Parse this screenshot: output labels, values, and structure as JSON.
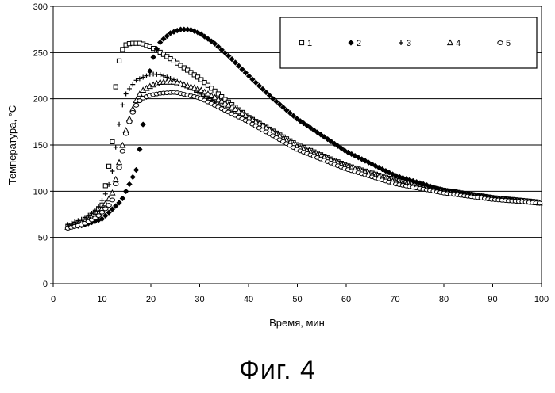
{
  "caption": "Фиг. 4",
  "chart_data": {
    "type": "scatter",
    "xlabel": "Время, мин",
    "ylabel": "Температура, °С",
    "xlim": [
      0,
      100
    ],
    "ylim": [
      0,
      300
    ],
    "x_ticks": [
      0,
      10,
      20,
      30,
      40,
      50,
      60,
      70,
      80,
      90,
      100
    ],
    "y_ticks": [
      0,
      50,
      100,
      150,
      200,
      250,
      300
    ],
    "grid": "horizontal",
    "legend_position": "top-right",
    "series": [
      {
        "name": "1",
        "marker": "square",
        "x": [
          3,
          6,
          8,
          10,
          12,
          13,
          14,
          15,
          16,
          18,
          20,
          22,
          25,
          30,
          35,
          40,
          50,
          60,
          70,
          80,
          90,
          100
        ],
        "y": [
          62,
          66,
          74,
          85,
          145,
          230,
          252,
          259,
          260,
          260,
          256,
          250,
          240,
          222,
          200,
          180,
          150,
          128,
          112,
          101,
          93,
          88
        ]
      },
      {
        "name": "2",
        "marker": "diamond",
        "x": [
          3,
          6,
          10,
          14,
          17,
          18,
          19,
          20,
          21,
          22,
          24,
          26,
          28,
          30,
          33,
          36,
          40,
          45,
          50,
          60,
          70,
          80,
          90,
          100
        ],
        "y": [
          61,
          63,
          70,
          90,
          123,
          155,
          198,
          238,
          252,
          262,
          271,
          275,
          275,
          271,
          260,
          246,
          225,
          200,
          178,
          143,
          117,
          101,
          93,
          87
        ]
      },
      {
        "name": "3",
        "marker": "plus",
        "x": [
          3,
          6,
          9,
          11,
          12,
          13,
          14,
          15,
          17,
          20,
          22,
          25,
          30,
          35,
          40,
          50,
          60,
          70,
          80,
          90,
          100
        ],
        "y": [
          64,
          70,
          80,
          100,
          118,
          155,
          190,
          207,
          220,
          227,
          226,
          220,
          206,
          190,
          175,
          146,
          126,
          110,
          100,
          92,
          87
        ]
      },
      {
        "name": "4",
        "marker": "triangle",
        "x": [
          3,
          6,
          9,
          12,
          13,
          14,
          15,
          16,
          17,
          18,
          20,
          22,
          25,
          30,
          35,
          40,
          50,
          60,
          70,
          80,
          90,
          100
        ],
        "y": [
          61,
          66,
          74,
          96,
          117,
          145,
          168,
          185,
          198,
          208,
          214,
          218,
          218,
          210,
          196,
          180,
          148,
          127,
          110,
          99,
          92,
          87
        ]
      },
      {
        "name": "5",
        "marker": "circle",
        "x": [
          3,
          6,
          9,
          12,
          14,
          15,
          16,
          17,
          18,
          20,
          22,
          25,
          30,
          35,
          40,
          50,
          60,
          70,
          80,
          90,
          100
        ],
        "y": [
          60,
          64,
          72,
          88,
          138,
          165,
          182,
          193,
          200,
          204,
          206,
          207,
          201,
          188,
          175,
          145,
          124,
          108,
          98,
          91,
          87
        ]
      }
    ]
  }
}
